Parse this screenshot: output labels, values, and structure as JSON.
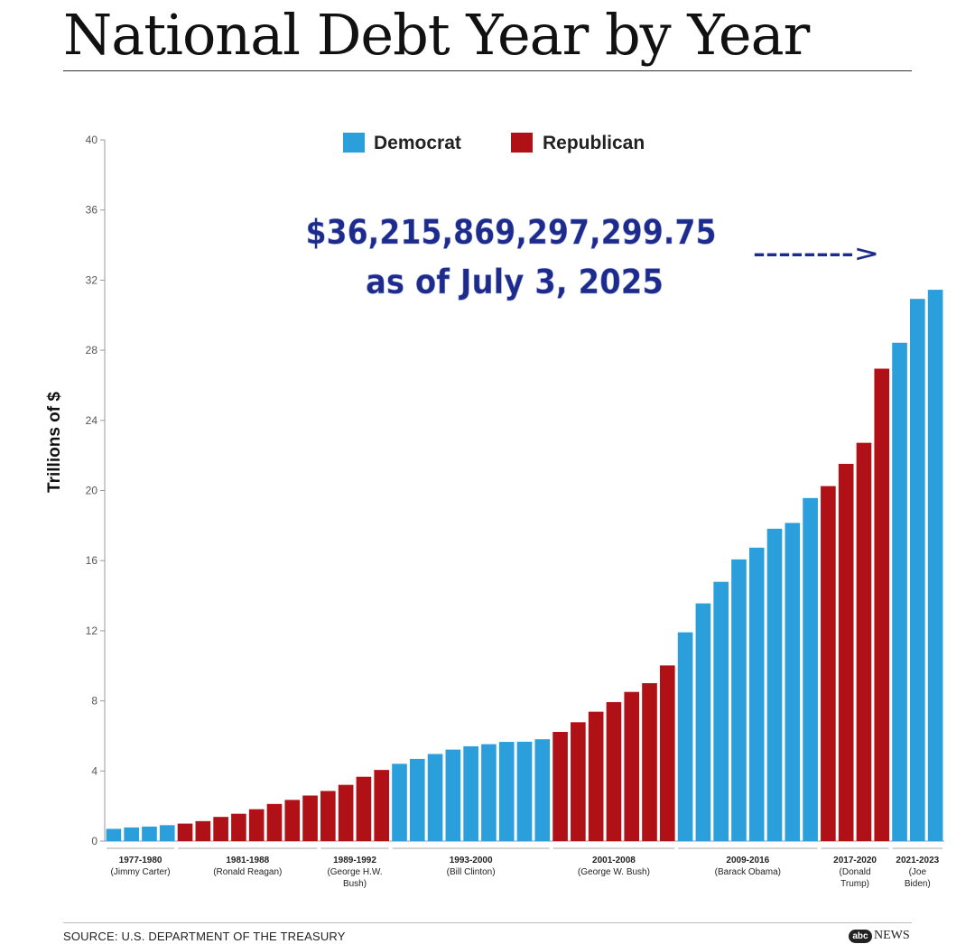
{
  "title": "National Debt Year by Year",
  "source": "SOURCE: U.S. DEPARTMENT OF THE TREASURY",
  "logo": {
    "mark": "abc",
    "word": "NEWS"
  },
  "annotation": {
    "amount": "$36,215,869,297,299.75",
    "date": "as of July 3, 2025",
    "arrow": "-------->"
  },
  "colors": {
    "democrat": "#2a9fdb",
    "republican": "#b01116",
    "annotation": "#1c2b8c"
  },
  "chart_data": {
    "type": "bar",
    "ylabel": "Trillions of $",
    "ylim": [
      0,
      40
    ],
    "yticks": [
      0,
      4,
      8,
      12,
      16,
      20,
      24,
      28,
      32,
      36,
      40
    ],
    "grid": false,
    "legend": {
      "placement": "top-center",
      "entries": [
        {
          "name": "Democrat",
          "color": "#2a9fdb"
        },
        {
          "name": "Republican",
          "color": "#b01116"
        }
      ]
    },
    "series": [
      {
        "name": "Democrat",
        "color": "#2a9fdb"
      },
      {
        "name": "Republican",
        "color": "#b01116"
      }
    ],
    "groups": [
      {
        "label": [
          "1977-1980",
          "(Jimmy Carter)"
        ],
        "party": "Democrat",
        "values": [
          0.7,
          0.78,
          0.83,
          0.91
        ]
      },
      {
        "label": [
          "1981-1988",
          "(Ronald Reagan)"
        ],
        "party": "Republican",
        "values": [
          1.0,
          1.14,
          1.38,
          1.56,
          1.82,
          2.12,
          2.35,
          2.6
        ]
      },
      {
        "label": [
          "1989-1992",
          "(George H.W.",
          "Bush)"
        ],
        "party": "Republican",
        "values": [
          2.86,
          3.21,
          3.67,
          4.06
        ]
      },
      {
        "label": [
          "1993-2000",
          "(Bill Clinton)"
        ],
        "party": "Democrat",
        "values": [
          4.41,
          4.69,
          4.97,
          5.22,
          5.41,
          5.53,
          5.66,
          5.67,
          5.81
        ]
      },
      {
        "label": [
          "2001-2008",
          "(George W. Bush)"
        ],
        "party": "Republican",
        "values": [
          6.23,
          6.78,
          7.38,
          7.93,
          8.51,
          9.01,
          10.02
        ]
      },
      {
        "label": [
          "2009-2016",
          "(Barack Obama)"
        ],
        "party": "Democrat",
        "values": [
          11.91,
          13.56,
          14.79,
          16.07,
          16.74,
          17.82,
          18.15,
          19.57
        ]
      },
      {
        "label": [
          "2017-2020",
          "(Donald",
          "Trump)"
        ],
        "party": "Republican",
        "values": [
          20.25,
          21.52,
          22.72,
          26.95
        ]
      },
      {
        "label": [
          "2021-2023",
          "(Joe",
          "Biden)"
        ],
        "party": "Democrat",
        "values": [
          28.43,
          30.93,
          31.45
        ]
      }
    ]
  }
}
